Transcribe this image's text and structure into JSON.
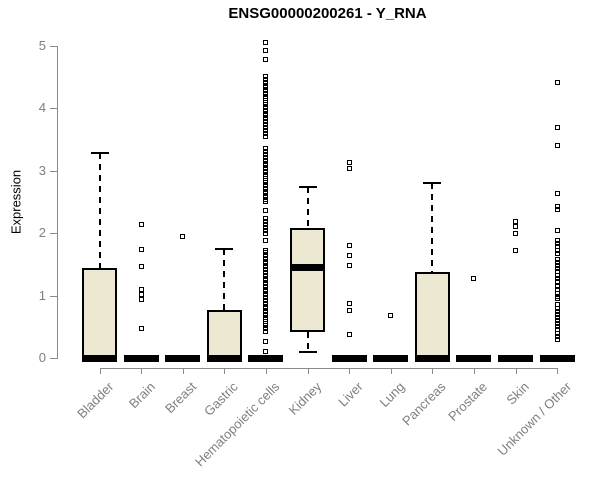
{
  "chart_data": {
    "type": "boxplot",
    "title": "ENSG00000200261 - Y_RNA",
    "xlabel": "",
    "ylabel": "Expression",
    "ylim": [
      0,
      5.07
    ],
    "yticks": [
      0,
      1,
      2,
      3,
      4,
      5
    ],
    "grid": false,
    "legend": false,
    "colors": {
      "box_fill": "#ede8d1",
      "box_stroke": "#000000",
      "axis": "#8a8a8a",
      "label": "#7f7f7f",
      "title": "#000000"
    },
    "categories": [
      "Bladder",
      "Brain",
      "Breast",
      "Gastric",
      "Hematopoietic cells",
      "Kidney",
      "Liver",
      "Lung",
      "Pancreas",
      "Prostate",
      "Skin",
      "Unknown / Other"
    ],
    "boxes": [
      {
        "category": "Bladder",
        "low": 0,
        "q1": 0,
        "median": 0,
        "q3": 1.44,
        "high": 3.28,
        "outliers": []
      },
      {
        "category": "Brain",
        "low": 0,
        "q1": 0,
        "median": 0,
        "q3": 0,
        "high": 0,
        "outliers": [
          2.14,
          1.74,
          1.47,
          1.09,
          1.01,
          0.93,
          0.48
        ]
      },
      {
        "category": "Breast",
        "low": 0,
        "q1": 0,
        "median": 0,
        "q3": 0,
        "high": 0,
        "outliers": [
          1.94
        ]
      },
      {
        "category": "Gastric",
        "low": 0,
        "q1": 0,
        "median": 0,
        "q3": 0.77,
        "high": 1.74,
        "outliers": []
      },
      {
        "category": "Hematopoietic cells",
        "low": 0,
        "q1": 0,
        "median": 0,
        "q3": 0,
        "high": 0,
        "outliers": [
          5.05,
          4.92,
          4.78,
          4.51,
          4.46,
          4.42,
          4.37,
          4.33,
          4.28,
          4.24,
          4.19,
          4.15,
          4.1,
          4.06,
          4.01,
          3.97,
          3.92,
          3.88,
          3.83,
          3.79,
          3.74,
          3.7,
          3.65,
          3.6,
          3.55,
          3.36,
          3.3,
          3.26,
          3.21,
          3.17,
          3.12,
          3.08,
          3.03,
          2.99,
          2.94,
          2.9,
          2.85,
          2.81,
          2.76,
          2.72,
          2.67,
          2.63,
          2.58,
          2.54,
          2.51,
          2.37,
          2.24,
          2.19,
          2.14,
          2.09,
          2.04,
          2.0,
          1.89,
          1.73,
          1.69,
          1.64,
          1.6,
          1.55,
          1.51,
          1.46,
          1.42,
          1.37,
          1.33,
          1.28,
          1.24,
          1.19,
          1.15,
          1.1,
          1.06,
          1.01,
          0.97,
          0.92,
          0.88,
          0.83,
          0.79,
          0.74,
          0.7,
          0.65,
          0.61,
          0.56,
          0.52,
          0.47,
          0.43,
          0.27,
          0.1
        ]
      },
      {
        "category": "Kidney",
        "low": 0.09,
        "q1": 0.41,
        "median": 1.45,
        "q3": 2.08,
        "high": 2.74,
        "outliers": []
      },
      {
        "category": "Liver",
        "low": 0,
        "q1": 0,
        "median": 0,
        "q3": 0,
        "high": 0,
        "outliers": [
          3.13,
          3.04,
          1.8,
          1.65,
          1.48,
          0.88,
          0.76,
          0.38
        ]
      },
      {
        "category": "Lung",
        "low": 0,
        "q1": 0,
        "median": 0,
        "q3": 0,
        "high": 0,
        "outliers": [
          0.68
        ]
      },
      {
        "category": "Pancreas",
        "low": 0,
        "q1": 0,
        "median": 0,
        "q3": 1.38,
        "high": 2.8,
        "outliers": []
      },
      {
        "category": "Prostate",
        "low": 0,
        "q1": 0,
        "median": 0,
        "q3": 0,
        "high": 0,
        "outliers": [
          1.28
        ]
      },
      {
        "category": "Skin",
        "low": 0,
        "q1": 0,
        "median": 0,
        "q3": 0,
        "high": 0,
        "outliers": [
          2.19,
          2.1,
          2.0,
          1.73
        ]
      },
      {
        "category": "Unknown / Other",
        "low": 0,
        "q1": 0,
        "median": 0,
        "q3": 0,
        "high": 0,
        "outliers": [
          4.42,
          3.7,
          3.41,
          2.64,
          2.42,
          2.38,
          2.05,
          1.89,
          1.84,
          1.79,
          1.73,
          1.68,
          1.58,
          1.53,
          1.48,
          1.43,
          1.38,
          1.33,
          1.28,
          1.23,
          1.14,
          1.09,
          1.04,
          0.99,
          0.96,
          0.85,
          0.8,
          0.75,
          0.7,
          0.65,
          0.6,
          0.55,
          0.51,
          0.45,
          0.4,
          0.35,
          0.29
        ]
      }
    ]
  }
}
